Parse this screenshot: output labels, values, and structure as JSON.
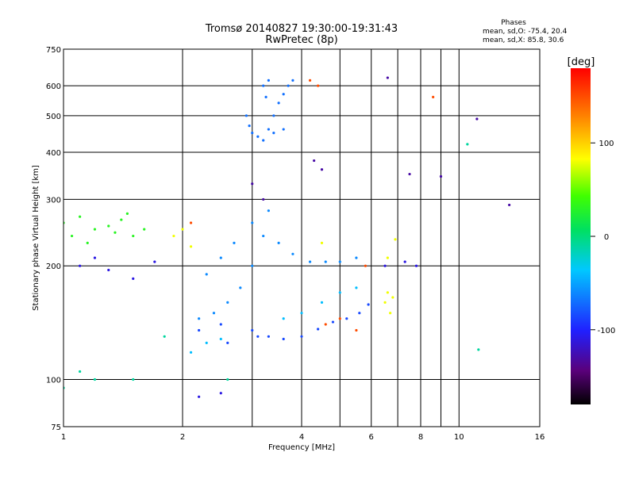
{
  "chart_data": {
    "type": "scatter",
    "title": "Tromsø 20140827 19:30:00-19:31:43",
    "subtitle": "RwPretec (8p)",
    "xlabel": "Frequency [MHz]",
    "ylabel": "Stationary phase Virtual Height [km]",
    "x_scale": "log",
    "y_scale": "log",
    "xlim": [
      1,
      16
    ],
    "ylim": [
      75,
      750
    ],
    "x_ticks": [
      "1",
      "2",
      "4",
      "6",
      "8",
      "10",
      "16"
    ],
    "x_tick_values": [
      1,
      2,
      4,
      6,
      8,
      10,
      16
    ],
    "x_grid_values": [
      1,
      2,
      3,
      4,
      5,
      6,
      7,
      8,
      9,
      10,
      16
    ],
    "y_ticks": [
      "75",
      "100",
      "200",
      "300",
      "400",
      "500",
      "600",
      "750"
    ],
    "y_tick_values": [
      75,
      100,
      200,
      300,
      400,
      500,
      600,
      750
    ],
    "grid": true,
    "legend": {
      "heading": "Phases",
      "line1": "mean, sd,O: -75.4, 20.4",
      "line2": "mean, sd,X:  85.8, 30.6"
    },
    "colorbar": {
      "label": "[deg]",
      "range": [
        -180,
        180
      ],
      "ticks": [
        "100",
        "0",
        "-100"
      ],
      "tick_values": [
        100,
        0,
        -100
      ],
      "placement": "right"
    },
    "series": [
      {
        "phase_deg": -70,
        "points": [
          [
            2.9,
            500
          ],
          [
            2.95,
            470
          ],
          [
            3.0,
            450
          ],
          [
            3.1,
            440
          ],
          [
            3.2,
            430
          ],
          [
            3.3,
            460
          ],
          [
            3.4,
            500
          ],
          [
            3.5,
            540
          ],
          [
            3.6,
            570
          ],
          [
            3.7,
            600
          ],
          [
            3.8,
            620
          ],
          [
            3.3,
            620
          ],
          [
            3.2,
            600
          ],
          [
            3.25,
            560
          ],
          [
            3.4,
            450
          ],
          [
            3.6,
            460
          ]
        ]
      },
      {
        "phase_deg": -85,
        "points": [
          [
            2.2,
            135
          ],
          [
            2.5,
            140
          ],
          [
            3.0,
            135
          ],
          [
            3.3,
            130
          ],
          [
            3.6,
            128
          ],
          [
            4.0,
            130
          ],
          [
            4.4,
            136
          ],
          [
            4.8,
            142
          ],
          [
            5.2,
            145
          ],
          [
            5.6,
            150
          ],
          [
            5.9,
            158
          ],
          [
            2.6,
            125
          ],
          [
            3.1,
            130
          ]
        ]
      },
      {
        "phase_deg": -60,
        "points": [
          [
            2.2,
            145
          ],
          [
            2.4,
            150
          ],
          [
            2.6,
            160
          ],
          [
            2.8,
            175
          ],
          [
            3.0,
            200
          ],
          [
            3.2,
            240
          ],
          [
            3.3,
            280
          ],
          [
            3.0,
            260
          ],
          [
            2.7,
            230
          ],
          [
            2.5,
            210
          ],
          [
            2.3,
            190
          ],
          [
            3.5,
            230
          ],
          [
            3.8,
            215
          ],
          [
            4.2,
            205
          ],
          [
            4.6,
            205
          ],
          [
            5.0,
            205
          ],
          [
            5.5,
            210
          ]
        ]
      },
      {
        "phase_deg": -40,
        "points": [
          [
            2.1,
            118
          ],
          [
            2.3,
            125
          ],
          [
            2.5,
            128
          ],
          [
            3.6,
            145
          ],
          [
            4.0,
            150
          ],
          [
            4.5,
            160
          ],
          [
            5.0,
            170
          ],
          [
            5.5,
            175
          ]
        ]
      },
      {
        "phase_deg": 30,
        "points": [
          [
            1.0,
            260
          ],
          [
            1.1,
            270
          ],
          [
            1.2,
            250
          ],
          [
            1.3,
            255
          ],
          [
            1.4,
            265
          ],
          [
            1.5,
            240
          ],
          [
            1.6,
            250
          ],
          [
            1.05,
            240
          ],
          [
            1.15,
            230
          ],
          [
            1.35,
            245
          ],
          [
            1.45,
            275
          ]
        ]
      },
      {
        "phase_deg": 80,
        "points": [
          [
            6.5,
            160
          ],
          [
            6.6,
            170
          ],
          [
            6.7,
            150
          ],
          [
            6.8,
            165
          ],
          [
            6.6,
            210
          ],
          [
            6.9,
            235
          ],
          [
            1.9,
            240
          ],
          [
            2.0,
            250
          ],
          [
            2.1,
            225
          ],
          [
            4.5,
            230
          ]
        ]
      },
      {
        "phase_deg": 150,
        "points": [
          [
            4.6,
            140
          ],
          [
            5.0,
            145
          ],
          [
            5.5,
            135
          ],
          [
            4.2,
            620
          ],
          [
            4.4,
            600
          ],
          [
            2.1,
            260
          ],
          [
            5.8,
            200
          ],
          [
            8.6,
            560
          ]
        ]
      },
      {
        "phase_deg": -110,
        "points": [
          [
            1.1,
            200
          ],
          [
            1.3,
            195
          ],
          [
            1.5,
            185
          ],
          [
            1.2,
            210
          ],
          [
            1.7,
            205
          ],
          [
            6.5,
            200
          ],
          [
            7.3,
            205
          ],
          [
            7.8,
            200
          ],
          [
            2.2,
            90
          ],
          [
            2.5,
            92
          ]
        ]
      },
      {
        "phase_deg": -10,
        "points": [
          [
            1.0,
            95
          ],
          [
            1.1,
            105
          ],
          [
            1.2,
            100
          ],
          [
            1.5,
            100
          ],
          [
            1.8,
            130
          ],
          [
            2.6,
            100
          ],
          [
            10.5,
            420
          ],
          [
            11.2,
            120
          ]
        ]
      },
      {
        "phase_deg": -130,
        "points": [
          [
            3.2,
            300
          ],
          [
            3.0,
            330
          ],
          [
            4.3,
            380
          ],
          [
            4.5,
            360
          ],
          [
            6.6,
            630
          ],
          [
            7.5,
            350
          ],
          [
            9.0,
            345
          ],
          [
            11.1,
            490
          ],
          [
            13.4,
            290
          ]
        ]
      }
    ]
  }
}
